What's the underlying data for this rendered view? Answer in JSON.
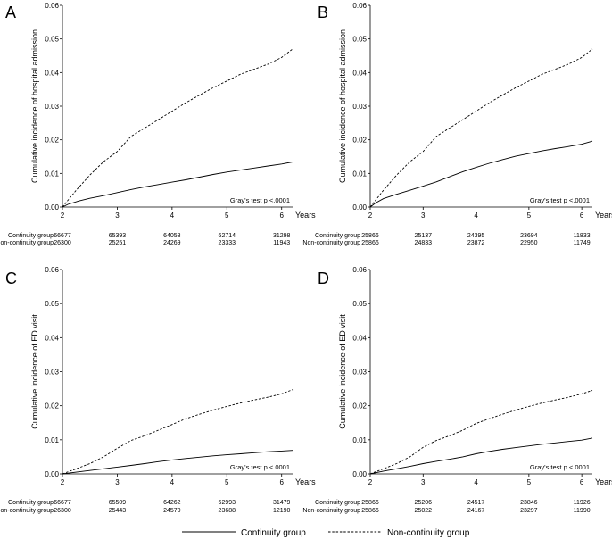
{
  "chart_data": [
    {
      "type": "line",
      "panel": "A",
      "ylabel": "Cumulative incidence of hospital admission",
      "xlabel": "Years",
      "xlim": [
        2,
        6.2
      ],
      "ylim": [
        0,
        0.06
      ],
      "x_ticks": [
        "2",
        "3",
        "4",
        "5",
        "6"
      ],
      "y_ticks": [
        "0.00",
        "0.01",
        "0.02",
        "0.03",
        "0.04",
        "0.05",
        "0.06"
      ],
      "annotation": "Gray's test p <.0001",
      "series": [
        {
          "name": "Continuity group",
          "style": "solid",
          "x": [
            2.0,
            2.1,
            2.3,
            2.5,
            2.75,
            3.0,
            3.25,
            3.5,
            3.75,
            4.0,
            4.25,
            4.5,
            4.75,
            5.0,
            5.25,
            5.5,
            5.75,
            6.0,
            6.2
          ],
          "y": [
            0.0,
            0.0008,
            0.0018,
            0.0026,
            0.0034,
            0.0043,
            0.0052,
            0.006,
            0.0067,
            0.0074,
            0.0081,
            0.0089,
            0.0097,
            0.0104,
            0.011,
            0.0116,
            0.0122,
            0.0128,
            0.0134
          ]
        },
        {
          "name": "Non-continuity group",
          "style": "dashed",
          "x": [
            2.0,
            2.1,
            2.25,
            2.5,
            2.75,
            3.0,
            3.25,
            3.5,
            3.75,
            4.0,
            4.25,
            4.5,
            4.75,
            5.0,
            5.25,
            5.5,
            5.75,
            6.0,
            6.2
          ],
          "y": [
            0.0,
            0.002,
            0.005,
            0.0095,
            0.0135,
            0.0165,
            0.021,
            0.0235,
            0.026,
            0.0285,
            0.031,
            0.0333,
            0.0355,
            0.0375,
            0.0395,
            0.041,
            0.0425,
            0.0445,
            0.047
          ]
        }
      ],
      "risk_table": {
        "rows": [
          {
            "label": "Continuity group",
            "values": [
              "66677",
              "65393",
              "64058",
              "62714",
              "31298"
            ]
          },
          {
            "label": "Non-continuity group",
            "values": [
              "26300",
              "25251",
              "24269",
              "23333",
              "11943"
            ]
          }
        ]
      }
    },
    {
      "type": "line",
      "panel": "B",
      "ylabel": "Cumulative incidence of hospital admission",
      "xlabel": "Years",
      "xlim": [
        2,
        6.2
      ],
      "ylim": [
        0,
        0.06
      ],
      "x_ticks": [
        "2",
        "3",
        "4",
        "5",
        "6"
      ],
      "y_ticks": [
        "0.00",
        "0.01",
        "0.02",
        "0.03",
        "0.04",
        "0.05",
        "0.06"
      ],
      "annotation": "Gray's test p <.0001",
      "series": [
        {
          "name": "Continuity group",
          "style": "solid",
          "x": [
            2.0,
            2.1,
            2.25,
            2.5,
            2.75,
            3.0,
            3.25,
            3.5,
            3.75,
            4.0,
            4.25,
            4.5,
            4.75,
            5.0,
            5.25,
            5.5,
            5.75,
            6.0,
            6.2
          ],
          "y": [
            0.0,
            0.0012,
            0.0025,
            0.0038,
            0.005,
            0.0062,
            0.0075,
            0.009,
            0.0105,
            0.0118,
            0.013,
            0.0141,
            0.0151,
            0.0159,
            0.0167,
            0.0174,
            0.018,
            0.0187,
            0.0196
          ]
        },
        {
          "name": "Non-continuity group",
          "style": "dashed",
          "x": [
            2.0,
            2.1,
            2.25,
            2.5,
            2.75,
            3.0,
            3.25,
            3.5,
            3.75,
            4.0,
            4.25,
            4.5,
            4.75,
            5.0,
            5.25,
            5.5,
            5.75,
            6.0,
            6.2
          ],
          "y": [
            0.0,
            0.002,
            0.005,
            0.0095,
            0.0135,
            0.0165,
            0.021,
            0.0235,
            0.026,
            0.0285,
            0.031,
            0.0333,
            0.0355,
            0.0375,
            0.0395,
            0.041,
            0.0425,
            0.0445,
            0.047
          ]
        }
      ],
      "risk_table": {
        "rows": [
          {
            "label": "Continuity group",
            "values": [
              "25866",
              "25137",
              "24395",
              "23694",
              "11833"
            ]
          },
          {
            "label": "Non-continuity group",
            "values": [
              "25866",
              "24833",
              "23872",
              "22950",
              "11749"
            ]
          }
        ]
      }
    },
    {
      "type": "line",
      "panel": "C",
      "ylabel": "Cumulative incidence of ED visit",
      "xlabel": "Years",
      "xlim": [
        2,
        6.2
      ],
      "ylim": [
        0,
        0.06
      ],
      "x_ticks": [
        "2",
        "3",
        "4",
        "5",
        "6"
      ],
      "y_ticks": [
        "0.00",
        "0.01",
        "0.02",
        "0.03",
        "0.04",
        "0.05",
        "0.06"
      ],
      "annotation": "Gray's test p <.0001",
      "series": [
        {
          "name": "Continuity group",
          "style": "solid",
          "x": [
            2.0,
            2.25,
            2.5,
            2.75,
            3.0,
            3.25,
            3.5,
            3.75,
            4.0,
            4.25,
            4.5,
            4.75,
            5.0,
            5.25,
            5.5,
            5.75,
            6.0,
            6.2
          ],
          "y": [
            0.0,
            0.0005,
            0.001,
            0.0015,
            0.002,
            0.0025,
            0.003,
            0.0036,
            0.0041,
            0.0045,
            0.0049,
            0.0053,
            0.0056,
            0.0059,
            0.0062,
            0.0065,
            0.0067,
            0.0069
          ]
        },
        {
          "name": "Non-continuity group",
          "style": "dashed",
          "x": [
            2.0,
            2.25,
            2.5,
            2.75,
            3.0,
            3.25,
            3.5,
            3.75,
            4.0,
            4.25,
            4.5,
            4.75,
            5.0,
            5.25,
            5.5,
            5.75,
            6.0,
            6.2
          ],
          "y": [
            0.0,
            0.0015,
            0.003,
            0.005,
            0.0075,
            0.0098,
            0.0112,
            0.0128,
            0.0145,
            0.0162,
            0.0175,
            0.0187,
            0.0198,
            0.0208,
            0.0217,
            0.0225,
            0.0235,
            0.0247
          ]
        }
      ],
      "risk_table": {
        "rows": [
          {
            "label": "Continuity group",
            "values": [
              "66677",
              "65509",
              "64262",
              "62993",
              "31479"
            ]
          },
          {
            "label": "Non-continuity group",
            "values": [
              "26300",
              "25443",
              "24570",
              "23688",
              "12190"
            ]
          }
        ]
      }
    },
    {
      "type": "line",
      "panel": "D",
      "ylabel": "Cumulative incidence of ED visit",
      "xlabel": "Years",
      "xlim": [
        2,
        6.2
      ],
      "ylim": [
        0,
        0.06
      ],
      "x_ticks": [
        "2",
        "3",
        "4",
        "5",
        "6"
      ],
      "y_ticks": [
        "0.00",
        "0.01",
        "0.02",
        "0.03",
        "0.04",
        "0.05",
        "0.06"
      ],
      "annotation": "Gray's test p <.0001",
      "series": [
        {
          "name": "Continuity group",
          "style": "solid",
          "x": [
            2.0,
            2.25,
            2.5,
            2.75,
            3.0,
            3.25,
            3.5,
            3.75,
            4.0,
            4.25,
            4.5,
            4.75,
            5.0,
            5.25,
            5.5,
            5.75,
            6.0,
            6.2
          ],
          "y": [
            0.0,
            0.0008,
            0.0015,
            0.0022,
            0.003,
            0.0037,
            0.0043,
            0.005,
            0.0059,
            0.0066,
            0.0072,
            0.0077,
            0.0082,
            0.0087,
            0.0091,
            0.0095,
            0.0099,
            0.0105
          ]
        },
        {
          "name": "Non-continuity group",
          "style": "dashed",
          "x": [
            2.0,
            2.25,
            2.5,
            2.75,
            3.0,
            3.25,
            3.5,
            3.75,
            4.0,
            4.25,
            4.5,
            4.75,
            5.0,
            5.25,
            5.5,
            5.75,
            6.0,
            6.2
          ],
          "y": [
            0.0,
            0.0015,
            0.003,
            0.005,
            0.0078,
            0.0098,
            0.0112,
            0.0128,
            0.0148,
            0.0162,
            0.0175,
            0.0187,
            0.0198,
            0.0208,
            0.0217,
            0.0225,
            0.0235,
            0.0245
          ]
        }
      ],
      "risk_table": {
        "rows": [
          {
            "label": "Continuity group",
            "values": [
              "25866",
              "25206",
              "24517",
              "23846",
              "11926"
            ]
          },
          {
            "label": "Non-continuity group",
            "values": [
              "25866",
              "25022",
              "24167",
              "23297",
              "11990"
            ]
          }
        ]
      }
    }
  ],
  "legend": {
    "items": [
      {
        "label": "Continuity group",
        "style": "solid"
      },
      {
        "label": "Non-continuity group",
        "style": "dashed"
      }
    ]
  }
}
